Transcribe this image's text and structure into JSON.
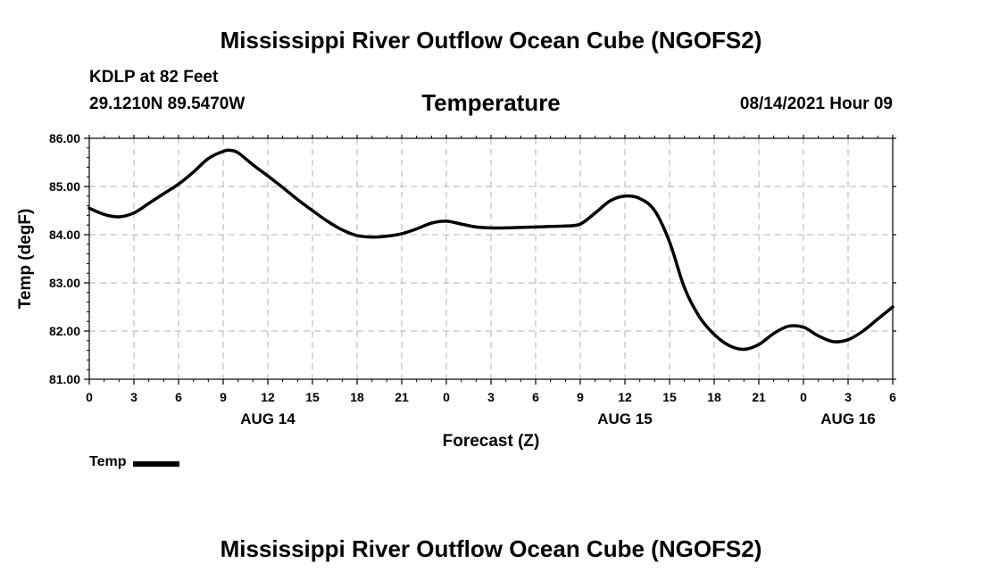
{
  "page": {
    "title_top": "Mississippi River Outflow Ocean Cube (NGOFS2)",
    "title_bottom": "Mississippi River Outflow Ocean Cube (NGOFS2)",
    "station": "KDLP at 82 Feet",
    "coordinates": "29.1210N  89.5470W",
    "variable": "Temperature",
    "datetime": "08/14/2021 Hour 09"
  },
  "chart_data": {
    "type": "line",
    "title": "Temperature",
    "xlabel": "Forecast (Z)",
    "ylabel": "Temp (degF)",
    "xlim": [
      0,
      54
    ],
    "ylim": [
      81,
      86
    ],
    "x_tick_values": [
      0,
      3,
      6,
      9,
      12,
      15,
      18,
      21,
      24,
      27,
      30,
      33,
      36,
      39,
      42,
      45,
      48,
      51,
      54
    ],
    "x_tick_labels": [
      "0",
      "3",
      "6",
      "9",
      "12",
      "15",
      "18",
      "21",
      "0",
      "3",
      "6",
      "9",
      "12",
      "15",
      "18",
      "21",
      "0",
      "3",
      "6"
    ],
    "y_tick_values": [
      81,
      82,
      83,
      84,
      85,
      86
    ],
    "y_tick_labels": [
      "81.00",
      "82.00",
      "83.00",
      "84.00",
      "85.00",
      "86.00"
    ],
    "date_labels": [
      {
        "x": 12,
        "label": "AUG 14"
      },
      {
        "x": 36,
        "label": "AUG 15"
      },
      {
        "x": 51,
        "label": "AUG 16"
      }
    ],
    "grid": true,
    "line_color": "#000000",
    "series": [
      {
        "name": "Temp",
        "x": [
          0,
          1,
          2,
          3,
          4,
          5,
          6,
          7,
          8,
          9,
          9.5,
          10,
          11,
          12,
          13,
          14,
          15,
          16,
          17,
          18,
          19,
          20,
          21,
          22,
          23,
          24,
          25,
          26,
          27,
          28,
          29,
          30,
          31,
          32,
          33,
          34,
          35,
          36,
          37,
          38,
          39,
          40,
          41,
          42,
          43,
          44,
          45,
          46,
          47,
          48,
          49,
          50,
          51,
          52,
          53,
          54
        ],
        "values": [
          84.55,
          84.42,
          84.37,
          84.45,
          84.65,
          84.85,
          85.05,
          85.3,
          85.58,
          85.73,
          85.75,
          85.7,
          85.45,
          85.22,
          84.98,
          84.73,
          84.5,
          84.28,
          84.1,
          83.98,
          83.95,
          83.97,
          84.02,
          84.12,
          84.24,
          84.28,
          84.22,
          84.16,
          84.14,
          84.14,
          84.15,
          84.16,
          84.17,
          84.18,
          84.22,
          84.45,
          84.7,
          84.8,
          84.75,
          84.5,
          83.85,
          82.9,
          82.3,
          81.93,
          81.7,
          81.62,
          81.72,
          81.95,
          82.1,
          82.08,
          81.9,
          81.78,
          81.82,
          82.0,
          82.25,
          82.5
        ]
      }
    ],
    "legend": {
      "label": "Temp",
      "position": "bottom-left"
    }
  }
}
